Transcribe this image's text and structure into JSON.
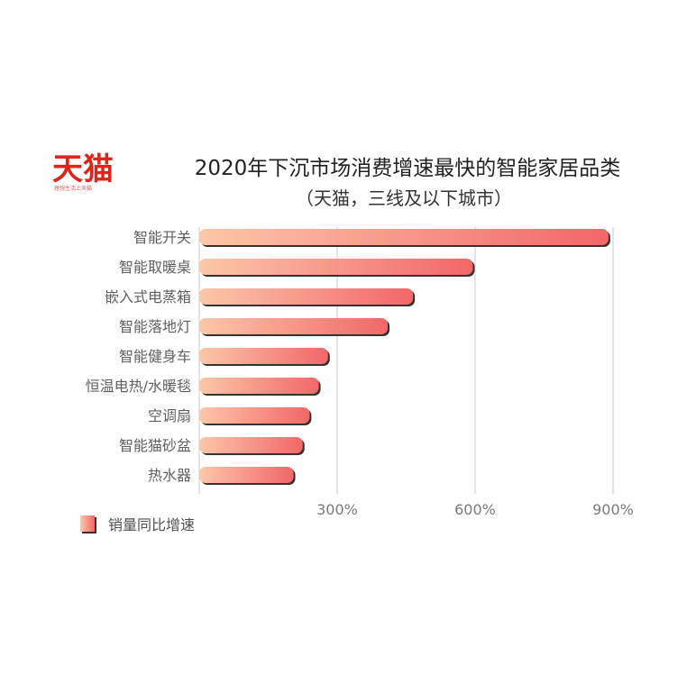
{
  "logo": {
    "main": "天猫",
    "tagline": "理想生活上天猫"
  },
  "colors": {
    "brand": "#e1241b",
    "bar_start": "#fcc7a8",
    "bar_end": "#f26767",
    "bar_shadow": "#333333",
    "grid": "#c8c8c8"
  },
  "chart_data": {
    "type": "bar",
    "orientation": "horizontal",
    "title": "2020年下沉市场消费增速最快的智能家居品类",
    "subtitle": "（天猫，三线及以下城市）",
    "categories": [
      "智能开关",
      "智能取暖桌",
      "嵌入式电蒸箱",
      "智能落地灯",
      "智能健身车",
      "恒温电热/水暖毯",
      "空调扇",
      "智能猫砂盆",
      "热水器"
    ],
    "series": [
      {
        "name": "销量同比增速",
        "values": [
          890,
          595,
          465,
          410,
          280,
          260,
          240,
          225,
          205
        ]
      }
    ],
    "xlim": [
      0,
      900
    ],
    "xticks": [
      300,
      600,
      900
    ],
    "xtick_labels": [
      "300%",
      "600%",
      "900%"
    ],
    "grid": true,
    "legend": "bottom-left"
  }
}
